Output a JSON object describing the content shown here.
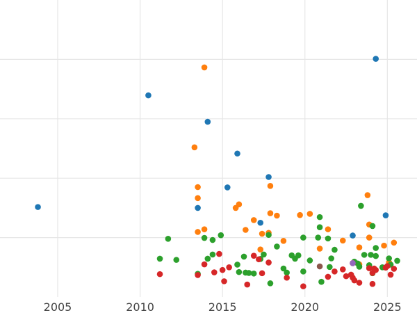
{
  "chart_data": {
    "type": "scatter",
    "title": "",
    "xlabel": "",
    "ylabel": "",
    "xlim": [
      2001.5,
      2026.8
    ],
    "ylim": [
      0,
      1
    ],
    "x_ticks": [
      2005,
      2010,
      2015,
      2020,
      2025
    ],
    "x_tick_labels": [
      "2005",
      "2010",
      "2015",
      "2020",
      "2025"
    ],
    "y_gridlines": [
      0.2,
      0.4,
      0.6,
      0.8
    ],
    "y_tick_labels_shown": false,
    "grid": true,
    "legend": "none",
    "series": [
      {
        "color": "#1f77b4",
        "points": [
          [
            2003.8,
            0.303
          ],
          [
            2010.5,
            0.679
          ],
          [
            2013.5,
            0.3
          ],
          [
            2014.1,
            0.59
          ],
          [
            2015.3,
            0.369
          ],
          [
            2015.9,
            0.483
          ],
          [
            2017.3,
            0.25
          ],
          [
            2017.8,
            0.404
          ],
          [
            2022.9,
            0.207
          ],
          [
            2024.3,
            0.802
          ],
          [
            2024.9,
            0.275
          ]
        ]
      },
      {
        "color": "#ff7f0e",
        "points": [
          [
            2013.3,
            0.504
          ],
          [
            2013.5,
            0.37
          ],
          [
            2013.5,
            0.333
          ],
          [
            2013.5,
            0.219
          ],
          [
            2013.9,
            0.773
          ],
          [
            2013.9,
            0.228
          ],
          [
            2015.8,
            0.3
          ],
          [
            2016.0,
            0.312
          ],
          [
            2016.4,
            0.226
          ],
          [
            2016.9,
            0.259
          ],
          [
            2017.3,
            0.16
          ],
          [
            2017.4,
            0.213
          ],
          [
            2017.8,
            0.216
          ],
          [
            2017.9,
            0.282
          ],
          [
            2017.9,
            0.374
          ],
          [
            2018.3,
            0.274
          ],
          [
            2018.7,
            0.189
          ],
          [
            2019.7,
            0.276
          ],
          [
            2020.3,
            0.28
          ],
          [
            2020.9,
            0.163
          ],
          [
            2021.4,
            0.228
          ],
          [
            2022.3,
            0.19
          ],
          [
            2023.3,
            0.167
          ],
          [
            2023.3,
            0.11
          ],
          [
            2023.8,
            0.343
          ],
          [
            2023.9,
            0.244
          ],
          [
            2023.9,
            0.2
          ],
          [
            2024.8,
            0.173
          ],
          [
            2025.1,
            0.117
          ],
          [
            2025.4,
            0.183
          ]
        ]
      },
      {
        "color": "#2ca02c",
        "points": [
          [
            2011.2,
            0.129
          ],
          [
            2011.7,
            0.196
          ],
          [
            2012.2,
            0.125
          ],
          [
            2013.5,
            0.078
          ],
          [
            2013.9,
            0.199
          ],
          [
            2014.1,
            0.129
          ],
          [
            2014.4,
            0.143
          ],
          [
            2014.4,
            0.192
          ],
          [
            2014.9,
            0.208
          ],
          [
            2015.9,
            0.109
          ],
          [
            2016.0,
            0.084
          ],
          [
            2016.3,
            0.136
          ],
          [
            2016.4,
            0.082
          ],
          [
            2016.6,
            0.081
          ],
          [
            2016.9,
            0.079
          ],
          [
            2017.3,
            0.128
          ],
          [
            2017.5,
            0.143
          ],
          [
            2017.8,
            0.209
          ],
          [
            2017.9,
            0.046
          ],
          [
            2018.3,
            0.17
          ],
          [
            2018.7,
            0.096
          ],
          [
            2018.9,
            0.082
          ],
          [
            2019.2,
            0.14
          ],
          [
            2019.4,
            0.129
          ],
          [
            2019.6,
            0.14
          ],
          [
            2019.9,
            0.2
          ],
          [
            2019.9,
            0.086
          ],
          [
            2020.3,
            0.123
          ],
          [
            2020.8,
            0.2
          ],
          [
            2020.9,
            0.269
          ],
          [
            2020.9,
            0.235
          ],
          [
            2021.0,
            0.051
          ],
          [
            2021.4,
            0.197
          ],
          [
            2021.5,
            0.101
          ],
          [
            2021.6,
            0.13
          ],
          [
            2021.8,
            0.159
          ],
          [
            2023.0,
            0.119
          ],
          [
            2023.2,
            0.113
          ],
          [
            2023.3,
            0.102
          ],
          [
            2023.4,
            0.307
          ],
          [
            2023.6,
            0.142
          ],
          [
            2023.9,
            0.107
          ],
          [
            2024.0,
            0.142
          ],
          [
            2024.1,
            0.239
          ],
          [
            2024.1,
            0.08
          ],
          [
            2024.3,
            0.165
          ],
          [
            2024.3,
            0.138
          ],
          [
            2024.7,
            0.1
          ],
          [
            2025.1,
            0.13
          ],
          [
            2025.2,
            0.109
          ],
          [
            2025.6,
            0.122
          ]
        ]
      },
      {
        "color": "#d62728",
        "points": [
          [
            2011.2,
            0.077
          ],
          [
            2013.5,
            0.074
          ],
          [
            2013.9,
            0.11
          ],
          [
            2014.5,
            0.083
          ],
          [
            2014.8,
            0.145
          ],
          [
            2015.0,
            0.091
          ],
          [
            2015.1,
            0.053
          ],
          [
            2015.4,
            0.1
          ],
          [
            2016.5,
            0.042
          ],
          [
            2016.9,
            0.139
          ],
          [
            2017.2,
            0.127
          ],
          [
            2017.4,
            0.08
          ],
          [
            2017.8,
            0.116
          ],
          [
            2018.9,
            0.065
          ],
          [
            2019.9,
            0.036
          ],
          [
            2021.4,
            0.068
          ],
          [
            2021.8,
            0.086
          ],
          [
            2022.3,
            0.093
          ],
          [
            2022.5,
            0.07
          ],
          [
            2022.8,
            0.075
          ],
          [
            2022.9,
            0.065
          ],
          [
            2022.9,
            0.114
          ],
          [
            2023.0,
            0.056
          ],
          [
            2023.3,
            0.048
          ],
          [
            2023.9,
            0.097
          ],
          [
            2024.1,
            0.044
          ],
          [
            2024.1,
            0.081
          ],
          [
            2024.2,
            0.096
          ],
          [
            2024.3,
            0.091
          ],
          [
            2024.9,
            0.099
          ],
          [
            2025.0,
            0.104
          ],
          [
            2025.2,
            0.075
          ],
          [
            2025.4,
            0.095
          ]
        ]
      },
      {
        "color": "#8c564b",
        "points": [
          [
            2020.9,
            0.103
          ]
        ]
      },
      {
        "color": "#9467bd",
        "points": [
          [
            2022.9,
            0.114
          ]
        ]
      }
    ]
  }
}
